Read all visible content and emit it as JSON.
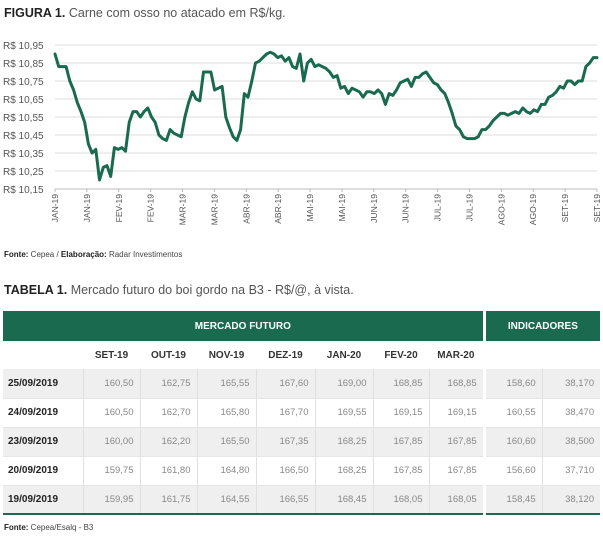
{
  "figure": {
    "label": "FIGURA 1.",
    "title": "Carne com osso no atacado em R$/kg.",
    "source_label": "Fonte:",
    "source_value": "Cepea",
    "source_sep": " / ",
    "elab_label": "Elaboração:",
    "elab_value": "Radar Investimentos"
  },
  "chart_data": {
    "type": "line",
    "title": "Carne com osso no atacado em R$/kg.",
    "xlabel": "",
    "ylabel": "",
    "ylim": [
      10.15,
      10.95
    ],
    "y_ticks": [
      "R$ 10,95",
      "R$ 10,85",
      "R$ 10,75",
      "R$ 10,65",
      "R$ 10,55",
      "R$ 10,45",
      "R$ 10,35",
      "R$ 10,25",
      "R$ 10,15"
    ],
    "y_tick_values": [
      10.95,
      10.85,
      10.75,
      10.65,
      10.55,
      10.45,
      10.35,
      10.25,
      10.15
    ],
    "x_ticks": [
      "JAN-19",
      "JAN-19",
      "FEV-19",
      "FEV-19",
      "MAR-19",
      "MAR-19",
      "ABR-19",
      "ABR-19",
      "MAI-19",
      "MAI-19",
      "JUN-19",
      "JUN-19",
      "JUL-19",
      "JUL-19",
      "AGO-19",
      "AGO-19",
      "SET-19",
      "SET-19"
    ],
    "grid": true,
    "line_color": "#1a6a4f",
    "series": [
      {
        "values": [
          10.9,
          10.83,
          10.83,
          10.83,
          10.75,
          10.7,
          10.63,
          10.58,
          10.52,
          10.4,
          10.35,
          10.37,
          10.2,
          10.27,
          10.28,
          10.22,
          10.38,
          10.37,
          10.38,
          10.36,
          10.52,
          10.58,
          10.58,
          10.55,
          10.58,
          10.6,
          10.55,
          10.52,
          10.45,
          10.43,
          10.42,
          10.48,
          10.46,
          10.45,
          10.44,
          10.55,
          10.63,
          10.69,
          10.65,
          10.64,
          10.8,
          10.8,
          10.8,
          10.7,
          10.71,
          10.72,
          10.55,
          10.49,
          10.44,
          10.42,
          10.48,
          10.68,
          10.66,
          10.75,
          10.85,
          10.86,
          10.88,
          10.9,
          10.91,
          10.9,
          10.88,
          10.89,
          10.86,
          10.88,
          10.83,
          10.82,
          10.9,
          10.75,
          10.85,
          10.87,
          10.83,
          10.84,
          10.83,
          10.82,
          10.8,
          10.77,
          10.78,
          10.71,
          10.72,
          10.68,
          10.71,
          10.7,
          10.69,
          10.66,
          10.69,
          10.69,
          10.68,
          10.7,
          10.68,
          10.62,
          10.68,
          10.67,
          10.7,
          10.74,
          10.75,
          10.76,
          10.72,
          10.77,
          10.77,
          10.79,
          10.8,
          10.77,
          10.74,
          10.73,
          10.7,
          10.68,
          10.63,
          10.57,
          10.5,
          10.48,
          10.44,
          10.43,
          10.43,
          10.43,
          10.44,
          10.48,
          10.48,
          10.5,
          10.53,
          10.55,
          10.57,
          10.57,
          10.56,
          10.57,
          10.58,
          10.57,
          10.6,
          10.58,
          10.57,
          10.59,
          10.58,
          10.62,
          10.62,
          10.66,
          10.67,
          10.69,
          10.72,
          10.71,
          10.75,
          10.75,
          10.73,
          10.75,
          10.75,
          10.83,
          10.85,
          10.88,
          10.88
        ]
      }
    ]
  },
  "table": {
    "label": "TABELA 1.",
    "title": "Mercado futuro do boi gordo na B3 - R$/@, à vista.",
    "group_left": "MERCADO FUTURO",
    "group_right": "INDICADORES",
    "columns": [
      "",
      "SET-19",
      "OUT-19",
      "NOV-19",
      "DEZ-19",
      "JAN-20",
      "FEV-20",
      "MAR-20",
      "",
      ""
    ],
    "rows": [
      {
        "date": "25/09/2019",
        "values": [
          "160,50",
          "162,75",
          "165,55",
          "167,60",
          "169,00",
          "168,85",
          "168,85",
          "158,60",
          "38,170"
        ]
      },
      {
        "date": "24/09/2019",
        "values": [
          "160,50",
          "162,70",
          "165,80",
          "167,70",
          "169,55",
          "169,15",
          "169,15",
          "160,55",
          "38,470"
        ]
      },
      {
        "date": "23/09/2019",
        "values": [
          "160,00",
          "162,20",
          "165,50",
          "167,35",
          "168,25",
          "167,85",
          "167,85",
          "160,60",
          "38,500"
        ]
      },
      {
        "date": "20/09/2019",
        "values": [
          "159,75",
          "161,80",
          "164,80",
          "166,50",
          "168,25",
          "167,85",
          "167,85",
          "156,60",
          "37,710"
        ]
      },
      {
        "date": "19/09/2019",
        "values": [
          "159,95",
          "161,75",
          "164,55",
          "166,55",
          "168,45",
          "168,05",
          "168,05",
          "158,45",
          "38,120"
        ]
      }
    ],
    "source_label": "Fonte:",
    "source_value": "Cepea/Esalq - B3"
  },
  "colors": {
    "accent": "#1a6a4f",
    "row_shade": "#efefef"
  }
}
